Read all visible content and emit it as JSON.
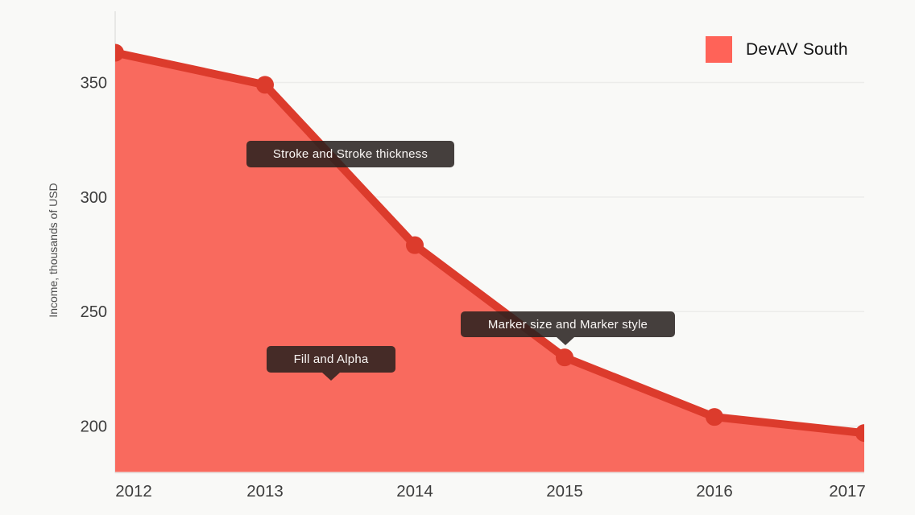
{
  "page": {
    "background": "#f9f9f7"
  },
  "legend": {
    "items": [
      {
        "label": "DevAV South",
        "swatch_color": "#ff6358"
      }
    ]
  },
  "chart_data": {
    "type": "area",
    "title": "",
    "x": [
      "2012",
      "2013",
      "2014",
      "2015",
      "2016",
      "2017"
    ],
    "series": [
      {
        "name": "DevAV South",
        "values": [
          363,
          349,
          279,
          230,
          204,
          197
        ]
      }
    ],
    "xlabel": "",
    "ylabel": "Income, thousands of USD",
    "yticks": [
      200,
      250,
      300,
      350
    ],
    "ylim": [
      180,
      379
    ],
    "grid": true,
    "legend_position": "top-right",
    "colors": {
      "fill": "#f96a5e",
      "stroke": "#dc3b2c",
      "marker": "#dc3b2c",
      "grid": "#ececea",
      "axis": "#e3e3e1",
      "tick_text": "#3d3d3d",
      "axis_title_text": "#4c4c4c",
      "tooltip_bg": "rgba(40,33,30,0.86)",
      "tooltip_text": "#faf7f5"
    },
    "annotations": [
      {
        "label": "Stroke and Stroke thickness"
      },
      {
        "label": "Marker size and Marker style"
      },
      {
        "label": "Fill and Alpha"
      }
    ]
  }
}
